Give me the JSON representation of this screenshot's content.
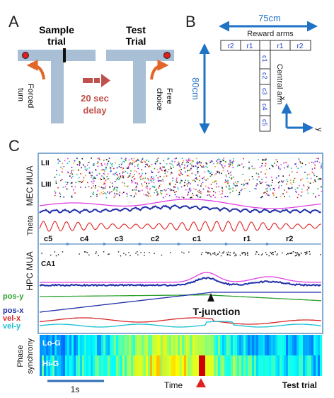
{
  "panels": {
    "a": "A",
    "b": "B",
    "c": "C"
  },
  "panel_a": {
    "sample_title_1": "Sample",
    "sample_title_2": "trial",
    "test_title_1": "Test",
    "test_title_2": "Trial",
    "delay_1": "20 sec",
    "delay_2": "delay",
    "forced_1": "Forced",
    "forced_2": "turn",
    "free_1": "Free",
    "free_2": "choice",
    "colors": {
      "track": "#a8bfd6",
      "arrow": "#e0662a",
      "delay": "#c0504d",
      "reward": "#e02020"
    }
  },
  "panel_b": {
    "width_label": "75cm",
    "height_label": "80cm",
    "reward_arms": "Reward arms",
    "central_arm": "Central arm",
    "left_segments": [
      "r2",
      "r1"
    ],
    "right_segments": [
      "r1",
      "r2"
    ],
    "central_segments": [
      "c1",
      "c2",
      "c3",
      "c4",
      "c5"
    ],
    "axis_x": "x",
    "axis_y": "y",
    "colors": {
      "dimension": "#1f72c4",
      "segment_text": "#1a3ec8"
    }
  },
  "panel_c": {
    "layer_labels": [
      "LII",
      "LIII"
    ],
    "mec_label": "MEC MUA",
    "theta_label": "Theta",
    "hpc_label": "HPC MUA",
    "ca1_label": "CA1",
    "segments": [
      "c5",
      "c4",
      "c3",
      "c2",
      "c1",
      "r1",
      "r2"
    ],
    "pos_labels": [
      {
        "text": "pos-y",
        "color": "#2ca02c"
      },
      {
        "text": "pos-x",
        "color": "#1f2ea8"
      },
      {
        "text": "vel-x",
        "color": "#d62728"
      },
      {
        "text": "vel-y",
        "color": "#17c0d0"
      }
    ],
    "t_junction": "T-junction",
    "phase_label_1": "Phase",
    "phase_label_2": "synchrony",
    "lo_g": "Lo-G",
    "hi_g": "Hi-G",
    "scale_bar": "1s",
    "time_label": "Time",
    "test_trial": "Test trial",
    "colors": {
      "mua_blue": "#1f2ea8",
      "envelope": "#e040e0",
      "theta": "#e02020",
      "segment_line": "#5b8fc7",
      "time_marker": "#e02020"
    }
  }
}
